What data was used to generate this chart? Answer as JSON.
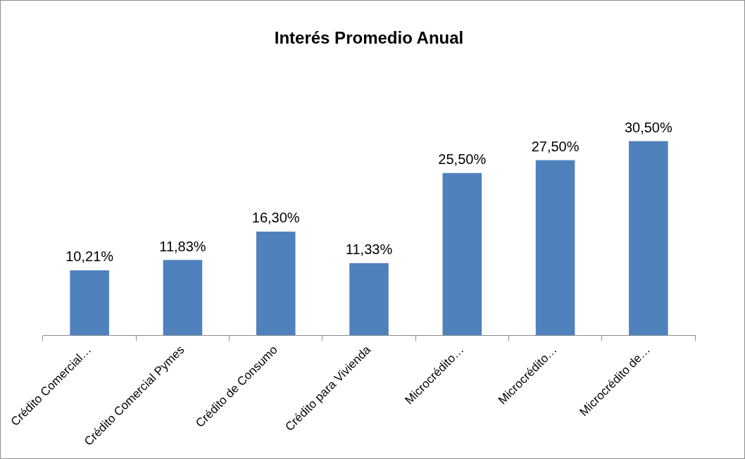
{
  "chart_data": {
    "type": "bar",
    "title": "Interés Promedio Anual",
    "categories": [
      "Crédito Comercial…",
      "Crédito Comercial Pymes",
      "Crédito de Consumo",
      "Crédito para Vivienda",
      "Microcrédito…",
      "Microcrédito…",
      "Microcrédito de…"
    ],
    "values": [
      10.21,
      11.83,
      16.3,
      11.33,
      25.5,
      27.5,
      30.5
    ],
    "value_labels": [
      "10,21%",
      "11,83%",
      "16,30%",
      "11,33%",
      "25,50%",
      "27,50%",
      "30,50%"
    ],
    "color": "#4f81bd",
    "grid": false,
    "legend": false
  }
}
